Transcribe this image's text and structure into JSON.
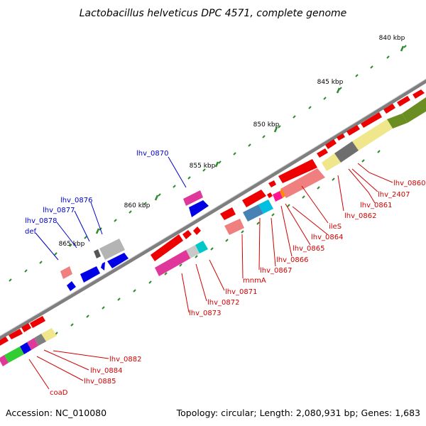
{
  "title": "Lactobacillus helveticus DPC 4571, complete genome",
  "footer": {
    "accession": "Accession: NC_010080",
    "summary": "Topology: circular; Length: 2,080,931 bp; Genes: 1,683"
  },
  "colors": {
    "backbone": "#7f7f7f",
    "tick": "#2e8b2e",
    "forward_label": "#0000c8",
    "reverse_label": "#d00000"
  },
  "kbp_marks": [
    "840 kbp",
    "845 kbp",
    "850 kbp",
    "855 kbp",
    "860 kbp",
    "865 kbp"
  ],
  "forward_labels": [
    "lhv_0870",
    "lhv_0876",
    "lhv_0877",
    "lhv_0878",
    "def"
  ],
  "reverse_labels": [
    "lhv_0860",
    "lhv_2407",
    "lhv_0861",
    "lhv_0862",
    "ileS",
    "lhv_0864",
    "lhv_0865",
    "lhv_0866",
    "lhv_0867",
    "mnmA",
    "lhv_0871",
    "lhv_0872",
    "lhv_0873",
    "lhv_0882",
    "lhv_0884",
    "lhv_0885",
    "coaD"
  ]
}
